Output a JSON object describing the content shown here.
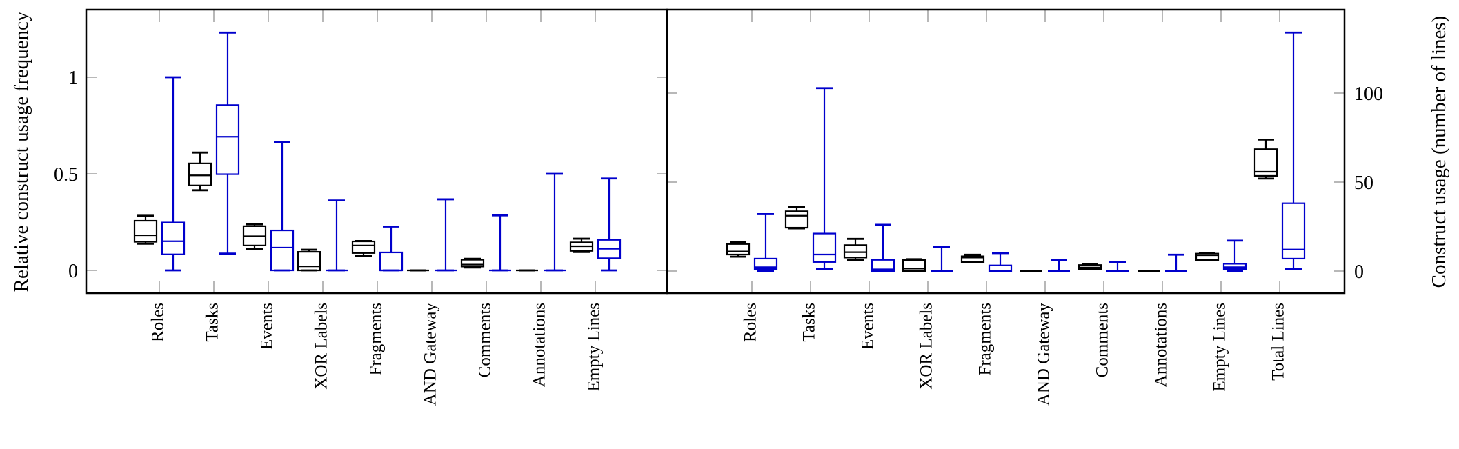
{
  "chart_data": [
    {
      "type": "box",
      "ylabel": "Relative construct usage frequency",
      "ylim": [
        -0.12,
        1.35
      ],
      "yticks": [
        0,
        0.5,
        1
      ],
      "ytick_labels": [
        "0",
        "0.5",
        "1"
      ],
      "grid": false,
      "categories": [
        "Roles",
        "Tasks",
        "Events",
        "XOR Labels",
        "Fragments",
        "AND Gateway",
        "Comments",
        "Annotations",
        "Empty Lines"
      ],
      "series": [
        {
          "color": "#000000",
          "boxes": [
            {
              "low": 0.138,
              "q1": 0.148,
              "median": 0.182,
              "q3": 0.257,
              "high": 0.283
            },
            {
              "low": 0.415,
              "q1": 0.44,
              "median": 0.492,
              "q3": 0.554,
              "high": 0.61
            },
            {
              "low": 0.112,
              "q1": 0.129,
              "median": 0.177,
              "q3": 0.229,
              "high": 0.239
            },
            {
              "low": 0,
              "q1": 0,
              "median": 0.021,
              "q3": 0.096,
              "high": 0.107
            },
            {
              "low": 0.076,
              "q1": 0.09,
              "median": 0.129,
              "q3": 0.15,
              "high": 0.152
            },
            {
              "low": 0,
              "q1": 0,
              "median": 0,
              "q3": 0,
              "high": 0
            },
            {
              "low": 0.015,
              "q1": 0.02,
              "median": 0.03,
              "q3": 0.055,
              "high": 0.06
            },
            {
              "low": 0,
              "q1": 0,
              "median": 0,
              "q3": 0,
              "high": 0
            },
            {
              "low": 0.095,
              "q1": 0.101,
              "median": 0.125,
              "q3": 0.145,
              "high": 0.164
            }
          ]
        },
        {
          "color": "#0000cc",
          "boxes": [
            {
              "low": 0,
              "q1": 0.083,
              "median": 0.151,
              "q3": 0.248,
              "high": 1.0
            },
            {
              "low": 0.087,
              "q1": 0.498,
              "median": 0.692,
              "q3": 0.856,
              "high": 1.231
            },
            {
              "low": 0,
              "q1": 0,
              "median": 0.118,
              "q3": 0.207,
              "high": 0.665
            },
            {
              "low": 0,
              "q1": 0,
              "median": 0,
              "q3": 0,
              "high": 0.362
            },
            {
              "low": 0,
              "q1": 0,
              "median": 0,
              "q3": 0.093,
              "high": 0.227
            },
            {
              "low": 0,
              "q1": 0,
              "median": 0,
              "q3": 0,
              "high": 0.368
            },
            {
              "low": 0,
              "q1": 0,
              "median": 0,
              "q3": 0,
              "high": 0.285
            },
            {
              "low": 0,
              "q1": 0,
              "median": 0,
              "q3": 0,
              "high": 0.5
            },
            {
              "low": 0,
              "q1": 0.063,
              "median": 0.112,
              "q3": 0.158,
              "high": 0.476
            }
          ]
        }
      ]
    },
    {
      "type": "box",
      "ylabel": "Construct usage (number of lines)",
      "ylim": [
        -12.5,
        147
      ],
      "yticks": [
        0,
        50,
        100
      ],
      "ytick_labels": [
        "0",
        "50",
        "100"
      ],
      "grid": false,
      "categories": [
        "Roles",
        "Tasks",
        "Events",
        "XOR Labels",
        "Fragments",
        "AND Gateway",
        "Comments",
        "Annotations",
        "Empty Lines",
        "Total Lines"
      ],
      "series": [
        {
          "color": "#000000",
          "boxes": [
            {
              "low": 8.1,
              "q1": 9.3,
              "median": 11,
              "q3": 15.2,
              "high": 16.2
            },
            {
              "low": 24.0,
              "q1": 24.4,
              "median": 31.1,
              "q3": 33.6,
              "high": 36.2
            },
            {
              "low": 6.3,
              "q1": 7.6,
              "median": 10.6,
              "q3": 14.6,
              "high": 18.1
            },
            {
              "low": 0,
              "q1": 0,
              "median": 1.4,
              "q3": 6.2,
              "high": 6.7
            },
            {
              "low": 5.0,
              "q1": 5.0,
              "median": 7.6,
              "q3": 8.3,
              "high": 9.2
            },
            {
              "low": 0,
              "q1": 0,
              "median": 0,
              "q3": 0,
              "high": 0
            },
            {
              "low": 1.2,
              "q1": 1.2,
              "median": 2,
              "q3": 3.4,
              "high": 4.1
            },
            {
              "low": 0,
              "q1": 0,
              "median": 0,
              "q3": 0,
              "high": 0
            },
            {
              "low": 6.0,
              "q1": 6.2,
              "median": 8.9,
              "q3": 9.8,
              "high": 10.2
            },
            {
              "low": 52,
              "q1": 53.5,
              "median": 55.8,
              "q3": 68.5,
              "high": 73.9
            }
          ]
        },
        {
          "color": "#0000cc",
          "boxes": [
            {
              "low": 0,
              "q1": 1.2,
              "median": 2.2,
              "q3": 7.0,
              "high": 32.0
            },
            {
              "low": 1.3,
              "q1": 5.1,
              "median": 9.3,
              "q3": 21.1,
              "high": 102.8
            },
            {
              "low": 0,
              "q1": 0,
              "median": 1.0,
              "q3": 6.3,
              "high": 26
            },
            {
              "low": 0,
              "q1": 0,
              "median": 0,
              "q3": 0,
              "high": 13.7
            },
            {
              "low": 0,
              "q1": 0,
              "median": 0,
              "q3": 3.2,
              "high": 10.1
            },
            {
              "low": 0,
              "q1": 0,
              "median": 0,
              "q3": 0,
              "high": 6.2
            },
            {
              "low": 0,
              "q1": 0,
              "median": 0,
              "q3": 0,
              "high": 5.2
            },
            {
              "low": 0,
              "q1": 0,
              "median": 0,
              "q3": 0,
              "high": 9.2
            },
            {
              "low": 0,
              "q1": 1.2,
              "median": 2.2,
              "q3": 4.1,
              "high": 17.1
            },
            {
              "low": 1.3,
              "q1": 7.0,
              "median": 12.1,
              "q3": 38.1,
              "high": 134
            }
          ]
        }
      ]
    }
  ]
}
